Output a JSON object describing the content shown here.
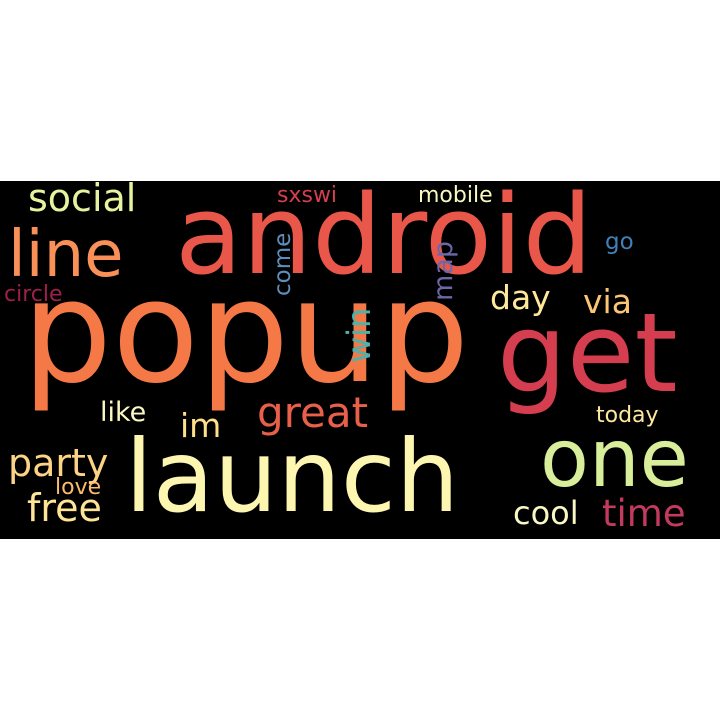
{
  "words": [
    {
      "text": "android",
      "color": "#e8574a"
    },
    {
      "text": "popup",
      "color": "#f57847"
    },
    {
      "text": "get",
      "color": "#d53e4f"
    },
    {
      "text": "launch",
      "color": "#fdf6b0"
    },
    {
      "text": "one",
      "color": "#d9ee9a"
    },
    {
      "text": "line",
      "color": "#f99058"
    },
    {
      "text": "social",
      "color": "#e6f4a0"
    },
    {
      "text": "sxswi",
      "color": "#d53e4f"
    },
    {
      "text": "mobile",
      "color": "#f8f8c0"
    },
    {
      "text": "come",
      "color": "#5e8ebd"
    },
    {
      "text": "map",
      "color": "#6a68a8"
    },
    {
      "text": "go",
      "color": "#3f80b8"
    },
    {
      "text": "circle",
      "color": "#9e1f4b"
    },
    {
      "text": "win",
      "color": "#4ab3ad"
    },
    {
      "text": "day",
      "color": "#fee89a"
    },
    {
      "text": "via",
      "color": "#fdc474"
    },
    {
      "text": "like",
      "color": "#fbf8c4"
    },
    {
      "text": "im",
      "color": "#fee08b"
    },
    {
      "text": "great",
      "color": "#e8604a"
    },
    {
      "text": "today",
      "color": "#fee8a0"
    },
    {
      "text": "party",
      "color": "#fdd385"
    },
    {
      "text": "love",
      "color": "#fdbb6c"
    },
    {
      "text": "free",
      "color": "#fee497"
    },
    {
      "text": "cool",
      "color": "#f9f7c2"
    },
    {
      "text": "time",
      "color": "#c33a5e"
    }
  ]
}
